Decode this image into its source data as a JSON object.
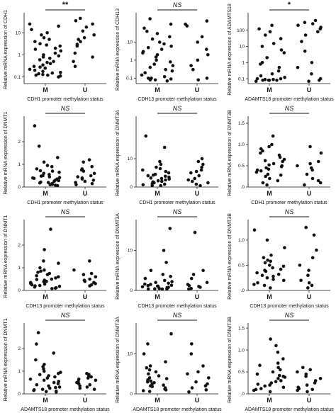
{
  "chart_data": [
    {
      "type": "scatter",
      "ylabel": "Relative mRNA expression of CDH1",
      "xlabel": "CDH1 promoter methylation status",
      "categories": [
        "M",
        "U"
      ],
      "significance": "**",
      "y_ticks": [
        "0.1",
        "1",
        "10"
      ],
      "ylim": [
        0.05,
        60
      ],
      "log": true,
      "series": [
        {
          "name": "M",
          "values": [
            25,
            20,
            14,
            10,
            8,
            6,
            5,
            4,
            3.2,
            2.8,
            2.5,
            2,
            1.8,
            1.5,
            1.2,
            1,
            0.9,
            0.8,
            0.7,
            0.6,
            0.5,
            0.45,
            0.4,
            0.35,
            0.3,
            0.28,
            0.25,
            0.22,
            0.2,
            0.18,
            0.16,
            0.15,
            0.14,
            0.13,
            0.12,
            0.12,
            0.11,
            0.1
          ]
        },
        {
          "name": "U",
          "values": [
            45,
            35,
            25,
            18,
            12,
            8,
            6,
            5,
            4,
            3,
            2.5,
            1.2,
            0.8,
            0.5,
            0.3
          ]
        }
      ]
    },
    {
      "type": "scatter",
      "ylabel": "Relative mRNA expression of CDH13",
      "xlabel": "CDH13 promoter methylation status",
      "categories": [
        "M",
        "U"
      ],
      "significance": "NS",
      "y_ticks": [
        "0.1",
        "1",
        "10"
      ],
      "ylim": [
        0.05,
        300
      ],
      "log": true,
      "series": [
        {
          "name": "M",
          "values": [
            200,
            100,
            60,
            40,
            30,
            20,
            15,
            10,
            8,
            6,
            5,
            4,
            3,
            2.5,
            2,
            1.5,
            1,
            0.8,
            0.6,
            0.5,
            0.4,
            0.3,
            0.25,
            0.2,
            0.15,
            0.12,
            0.1,
            0.1,
            0.09,
            0.08,
            0.08,
            0.07
          ]
        },
        {
          "name": "U",
          "values": [
            150,
            100,
            80,
            20,
            10,
            4,
            2,
            1,
            0.5,
            0.3,
            0.1,
            0.08
          ]
        }
      ]
    },
    {
      "type": "scatter",
      "ylabel": "Relative mRNA expression of ADAMTS18",
      "xlabel": "ADAMTS18 promoter methylation status",
      "categories": [
        "M",
        "U"
      ],
      "significance": "*",
      "y_ticks": [
        "0.1",
        "1",
        "10",
        "100"
      ],
      "ylim": [
        0.05,
        800
      ],
      "log": true,
      "series": [
        {
          "name": "M",
          "values": [
            200,
            120,
            80,
            50,
            30,
            15,
            10,
            6,
            4,
            2,
            1,
            0.8,
            0.5,
            0.3,
            0.2,
            0.15,
            0.12,
            0.1,
            0.1,
            0.09,
            0.09,
            0.08,
            0.08,
            0.08,
            0.08,
            0.08,
            0.07
          ]
        },
        {
          "name": "U",
          "values": [
            400,
            300,
            250,
            200,
            150,
            120,
            80,
            50,
            20,
            5,
            1,
            0.5,
            0.2,
            0.1,
            0.08,
            0.07
          ]
        }
      ]
    },
    {
      "type": "scatter",
      "ylabel": "Relative mRNA expression of DNMT1",
      "xlabel": "CDH1 promoter methylation status",
      "categories": [
        "M",
        "U"
      ],
      "significance": "NS",
      "y_ticks": [
        "0",
        "1",
        "2"
      ],
      "ylim": [
        0,
        3
      ],
      "log": false,
      "series": [
        {
          "name": "M",
          "values": [
            2.7,
            1.8,
            1.3,
            1.1,
            0.95,
            0.9,
            0.8,
            0.72,
            0.7,
            0.65,
            0.6,
            0.55,
            0.5,
            0.48,
            0.45,
            0.42,
            0.4,
            0.38,
            0.35,
            0.32,
            0.3,
            0.28,
            0.25,
            0.22,
            0.2,
            0.18,
            0.15,
            0.12,
            0.1,
            0.08,
            0.05
          ]
        },
        {
          "name": "U",
          "values": [
            1.2,
            1.1,
            0.9,
            0.8,
            0.75,
            0.7,
            0.6,
            0.5,
            0.45,
            0.4,
            0.35,
            0.3,
            0.25,
            0.2,
            0.15,
            0.1
          ]
        }
      ]
    },
    {
      "type": "scatter",
      "ylabel": "Relative mRNA expression of DNMT3A",
      "xlabel": "CDH1 promoter methylation status",
      "categories": [
        "M",
        "U"
      ],
      "significance": "NS",
      "y_ticks": [
        "0",
        "10"
      ],
      "ylim": [
        0,
        24
      ],
      "log": false,
      "series": [
        {
          "name": "M",
          "values": [
            18,
            14,
            9,
            8,
            7,
            6.5,
            6,
            5.5,
            5,
            4.5,
            4.2,
            4,
            3.8,
            3.5,
            3.2,
            3,
            2.8,
            2.5,
            2.2,
            2,
            1.8,
            1.5,
            1.2,
            1,
            0.8,
            0.5,
            0.3
          ]
        },
        {
          "name": "U",
          "values": [
            10,
            9,
            8,
            7,
            6,
            5.5,
            5,
            4,
            3,
            2.5,
            2,
            1.5,
            1,
            0.5
          ]
        }
      ]
    },
    {
      "type": "scatter",
      "ylabel": "Relative mRNA expression of DNMT3B",
      "xlabel": "CDH1 promoter methylation status",
      "categories": [
        "M",
        "U"
      ],
      "significance": "NS",
      "y_ticks": [
        ".0",
        "0.5",
        "1.0",
        "1.5"
      ],
      "ylim": [
        0,
        1.6
      ],
      "log": false,
      "series": [
        {
          "name": "M",
          "values": [
            1.2,
            1.0,
            0.95,
            0.9,
            0.85,
            0.8,
            0.75,
            0.7,
            0.65,
            0.62,
            0.6,
            0.55,
            0.52,
            0.5,
            0.48,
            0.45,
            0.42,
            0.4,
            0.38,
            0.35,
            0.3,
            0.28,
            0.25,
            0.2,
            0.15,
            0.1,
            0.05
          ]
        },
        {
          "name": "U",
          "values": [
            0.95,
            0.8,
            0.6,
            0.55,
            0.5,
            0.45,
            0.4,
            0.3,
            0.2,
            0.15,
            0.1,
            0.05
          ]
        }
      ]
    },
    {
      "type": "scatter",
      "ylabel": "Relative mRNA expression of DNMT1",
      "xlabel": "CDH13 promoter methylation status",
      "categories": [
        "M",
        "U"
      ],
      "significance": "NS",
      "y_ticks": [
        "0",
        "1",
        "2"
      ],
      "ylim": [
        0,
        3
      ],
      "log": false,
      "series": [
        {
          "name": "M",
          "values": [
            2.7,
            1.8,
            1.3,
            1.2,
            1.0,
            0.9,
            0.85,
            0.8,
            0.75,
            0.7,
            0.65,
            0.6,
            0.55,
            0.5,
            0.48,
            0.45,
            0.42,
            0.4,
            0.38,
            0.35,
            0.32,
            0.3,
            0.28,
            0.25,
            0.22,
            0.2,
            0.18,
            0.15,
            0.12,
            0.1,
            0.08
          ]
        },
        {
          "name": "U",
          "values": [
            1.3,
            0.9,
            0.75,
            0.7,
            0.6,
            0.5,
            0.45,
            0.4,
            0.35,
            0.3,
            0.25,
            0.2
          ]
        }
      ]
    },
    {
      "type": "scatter",
      "ylabel": "Relative mRNA expression of DNMT3A",
      "xlabel": "CDH13 promoter methylation status",
      "categories": [
        "M",
        "U"
      ],
      "significance": "NS",
      "y_ticks": [
        "0",
        "10"
      ],
      "ylim": [
        0,
        17
      ],
      "log": false,
      "series": [
        {
          "name": "M",
          "values": [
            15.5,
            10,
            7,
            5,
            4,
            3.5,
            3,
            2.5,
            2.2,
            2,
            1.8,
            1.6,
            1.5,
            1.3,
            1.2,
            1.1,
            1,
            0.9,
            0.8,
            0.7,
            0.6,
            0.5,
            0.4,
            0.3,
            0.2,
            0.1
          ]
        },
        {
          "name": "U",
          "values": [
            14.5,
            5,
            4,
            3,
            2,
            1.5,
            1.2,
            1,
            0.8,
            0.5,
            0.3
          ]
        }
      ]
    },
    {
      "type": "scatter",
      "ylabel": "Relative mRNA expression of DNMT3B",
      "xlabel": "CDH13 promoter methylation status",
      "categories": [
        "M",
        "U"
      ],
      "significance": "NS",
      "y_ticks": [
        ".0",
        "0.5",
        "1.0"
      ],
      "ylim": [
        0,
        1.35
      ],
      "log": false,
      "series": [
        {
          "name": "M",
          "values": [
            1.2,
            1.0,
            0.85,
            0.7,
            0.65,
            0.6,
            0.58,
            0.55,
            0.5,
            0.48,
            0.45,
            0.42,
            0.4,
            0.38,
            0.35,
            0.32,
            0.3,
            0.28,
            0.25,
            0.22,
            0.2,
            0.15,
            0.12,
            0.1,
            0.05
          ]
        },
        {
          "name": "U",
          "values": [
            1.25,
            1.1,
            0.8,
            0.65,
            0.5,
            0.4,
            0.3,
            0.2,
            0.15,
            0.1,
            0.05
          ]
        }
      ]
    },
    {
      "type": "scatter",
      "ylabel": "Relative mRNA expression of DNMT1",
      "xlabel": "ADAMTS18 promoter methylation status",
      "categories": [
        "M",
        "U"
      ],
      "significance": "NS",
      "y_ticks": [
        "0",
        "1",
        "2"
      ],
      "ylim": [
        0,
        3
      ],
      "log": false,
      "series": [
        {
          "name": "M",
          "values": [
            2.7,
            2.2,
            1.8,
            1.5,
            1.3,
            1.2,
            1.1,
            1.0,
            0.95,
            0.9,
            0.85,
            0.8,
            0.75,
            0.7,
            0.65,
            0.6,
            0.55,
            0.5,
            0.45,
            0.4,
            0.35,
            0.3,
            0.28,
            0.25,
            0.2,
            0.18,
            0.15,
            0.12,
            0.1,
            0.08
          ]
        },
        {
          "name": "U",
          "values": [
            0.9,
            0.85,
            0.8,
            0.75,
            0.7,
            0.65,
            0.6,
            0.55,
            0.5,
            0.45,
            0.4,
            0.35,
            0.3,
            0.25,
            0.2
          ]
        }
      ]
    },
    {
      "type": "scatter",
      "ylabel": "Relative mRNA expression of DNMT3A",
      "xlabel": "ADAMTS18 promoter methylation status",
      "categories": [
        "M",
        "U"
      ],
      "significance": "NS",
      "y_ticks": [
        "0",
        "10"
      ],
      "ylim": [
        0,
        17
      ],
      "log": false,
      "series": [
        {
          "name": "M",
          "values": [
            15,
            12.5,
            10,
            8,
            7,
            6.5,
            6,
            5.5,
            5,
            4.5,
            4,
            3.8,
            3.5,
            3.2,
            3,
            2.8,
            2.5,
            2.2,
            2,
            1.8,
            1.5,
            1.2,
            1,
            0.8,
            0.6
          ]
        },
        {
          "name": "U",
          "values": [
            12.5,
            10,
            7,
            5.5,
            5,
            4,
            3,
            2.5,
            2,
            1.5,
            1,
            0.5
          ]
        }
      ]
    },
    {
      "type": "scatter",
      "ylabel": "Relative mRNA expression of DNMT3B",
      "xlabel": "ADAMTS18 promoter methylation status",
      "categories": [
        "M",
        "U"
      ],
      "significance": "NS",
      "y_ticks": [
        ".0",
        "0.5",
        "1.0",
        "1.5"
      ],
      "ylim": [
        0,
        1.55
      ],
      "log": false,
      "series": [
        {
          "name": "M",
          "values": [
            1.25,
            1.1,
            0.95,
            0.8,
            0.7,
            0.65,
            0.6,
            0.55,
            0.5,
            0.45,
            0.42,
            0.4,
            0.38,
            0.35,
            0.3,
            0.28,
            0.25,
            0.22,
            0.2,
            0.18,
            0.15,
            0.12,
            0.1,
            0.08,
            0.05
          ]
        },
        {
          "name": "U",
          "values": [
            0.6,
            0.55,
            0.5,
            0.45,
            0.4,
            0.35,
            0.3,
            0.25,
            0.2,
            0.15,
            0.12,
            0.1,
            0.08,
            0.05
          ]
        }
      ]
    }
  ]
}
